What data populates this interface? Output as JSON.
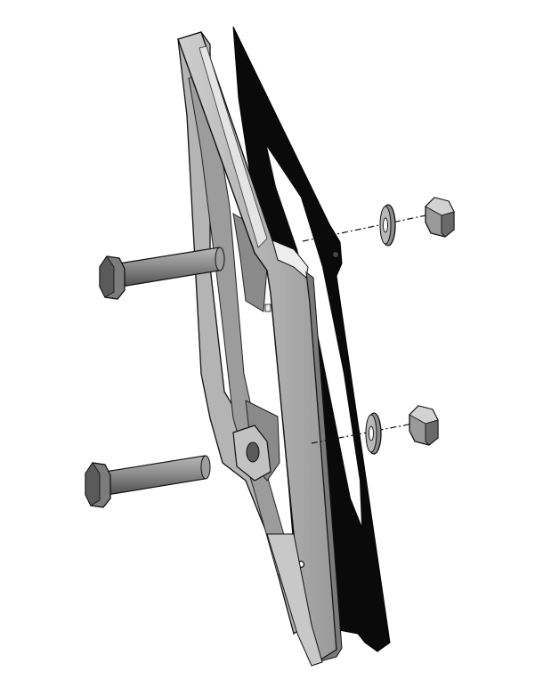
{
  "drawing": {
    "kind": "exploded-assembly",
    "components": [
      {
        "name": "mounting-frame",
        "count": 1
      },
      {
        "name": "gasket",
        "count": 1
      },
      {
        "name": "hex-bolt",
        "count": 2
      },
      {
        "name": "flat-washer",
        "count": 2
      },
      {
        "name": "hex-nut",
        "count": 2
      }
    ],
    "colors": {
      "gasket": "#0a0a0a",
      "frame_light": "#d6d6d6",
      "frame_mid": "#a9a9a9",
      "frame_dark": "#6e6e6e",
      "outline": "#111111",
      "hardware": "#8a8a8a",
      "hardware_dark": "#4a4a4a"
    }
  }
}
